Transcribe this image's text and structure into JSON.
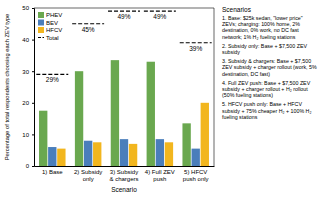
{
  "chart_data": {
    "type": "bar",
    "x_label": "Scenario",
    "y_label": "Percentage of total respondents choosing each ZEV type",
    "categories": [
      "1) Base",
      "2) Subsidy only",
      "3) Subsidy & chargers",
      "4) Full ZEV push",
      "5) HFCV push only"
    ],
    "series": [
      {
        "name": "PHEV",
        "color": "#6aa84f",
        "type": "bar",
        "values": [
          17.5,
          30,
          33.5,
          33,
          13.5
        ]
      },
      {
        "name": "BEV",
        "color": "#4a7ebb",
        "type": "bar",
        "values": [
          6,
          8,
          8.5,
          8.5,
          5.5
        ]
      },
      {
        "name": "HFCV",
        "color": "#f2b61e",
        "type": "bar",
        "values": [
          5.5,
          7.5,
          7,
          7.5,
          20
        ]
      },
      {
        "name": "Total",
        "color": "#000000",
        "type": "line",
        "line_style": "dashed",
        "data_labels": true,
        "values": [
          29,
          45,
          49,
          49,
          39
        ],
        "value_labels": [
          "29%",
          "45%",
          "49%",
          "49%",
          "39%"
        ]
      }
    ],
    "ylim": [
      0,
      50
    ],
    "yticks": [
      0,
      10,
      20,
      30,
      40,
      50
    ],
    "legend": "upper left",
    "annotations": {
      "title": "Scenarios",
      "items": [
        "1. Base: $25k sedan, \"lower price\" ZEVs; charging: 100% home, 2% destination, 0% work, no DC fast network; 1% H₂ fueling stations",
        "2. Subsidy only: Base + $7,500 ZEV subsidy",
        "3. Subsidy & chargers: Base + $7,500 ZEV subsidy + charger rollout (work, 5% destination, DC fast)",
        "4. Full ZEV push: Base + $7,500 ZEV subsidy + charger rollout + H₂ rollout (50% fueling stations)",
        "5. HFCV push only: Base + HFCV subsidy + 75% cheaper H₂ + 100% H₂ fueling stations"
      ]
    }
  }
}
